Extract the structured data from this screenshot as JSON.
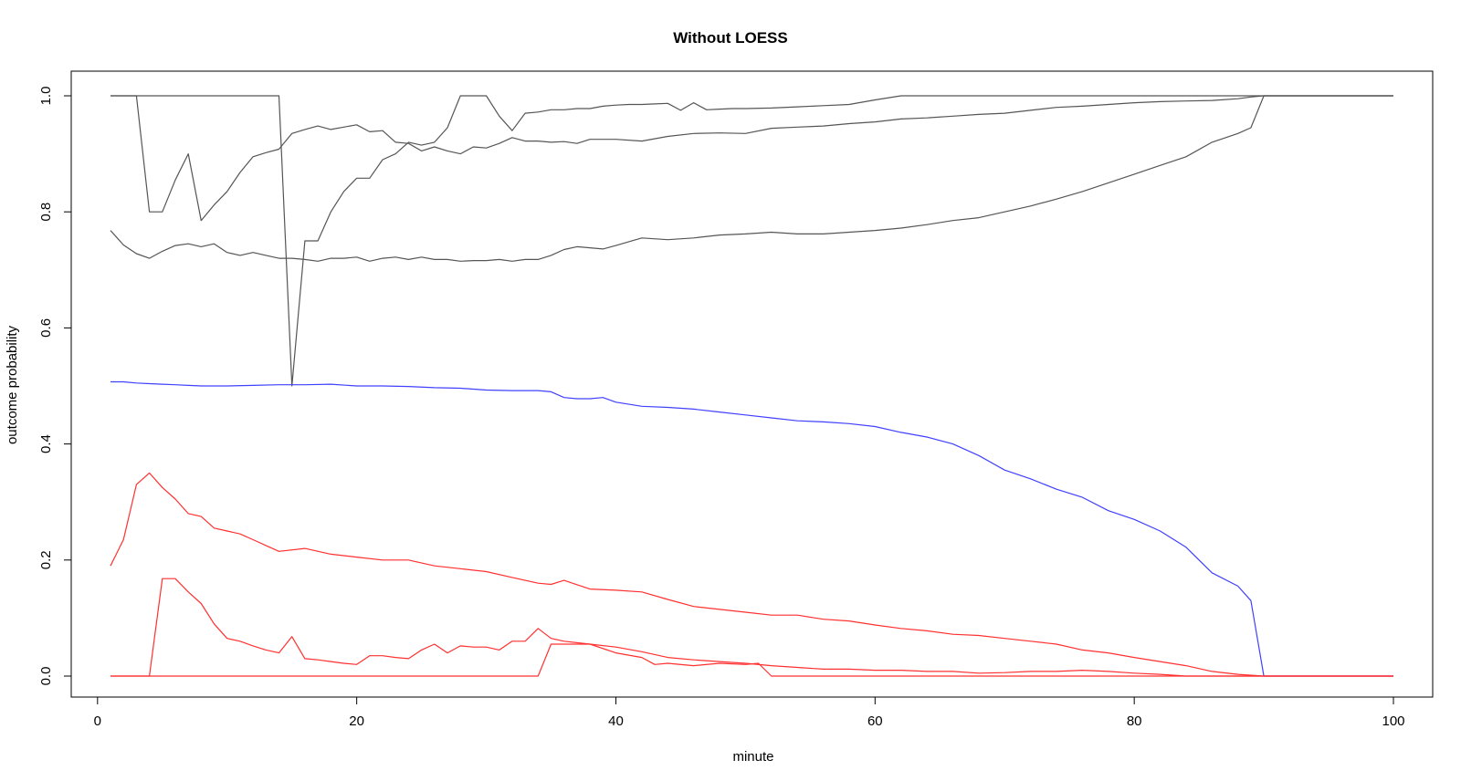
{
  "chart_data": {
    "type": "line",
    "title": "Without LOESS",
    "xlabel": "minute",
    "ylabel": "outcome probability",
    "xlim": [
      1,
      100
    ],
    "ylim": [
      0,
      1
    ],
    "x_ticks": [
      0,
      20,
      40,
      60,
      80,
      100
    ],
    "y_ticks": [
      0.0,
      0.2,
      0.4,
      0.6,
      0.8,
      1.0
    ],
    "x_tick_labels": [
      "0",
      "20",
      "40",
      "60",
      "80",
      "100"
    ],
    "y_tick_labels": [
      "0.0",
      "0.2",
      "0.4",
      "0.6",
      "0.8",
      "1.0"
    ],
    "grid": false,
    "legend": "none",
    "series": [
      {
        "color": "#555555",
        "x": [
          1,
          2,
          3,
          4,
          5,
          6,
          7,
          8,
          9,
          10,
          11,
          12,
          13,
          14,
          15,
          16,
          17,
          18,
          19,
          20,
          21,
          22,
          23,
          24,
          25,
          26,
          27,
          28,
          29,
          30,
          31,
          32,
          33,
          34,
          35,
          36,
          37,
          38,
          39,
          40,
          41,
          42,
          43,
          44,
          45,
          46,
          47,
          48,
          49,
          50,
          52,
          54,
          56,
          58,
          60,
          62,
          64,
          66,
          68,
          70,
          72,
          74,
          76,
          78,
          80,
          82,
          84,
          86,
          88,
          89,
          90,
          100
        ],
        "values": [
          1.0,
          1.0,
          1.0,
          1.0,
          1.0,
          1.0,
          1.0,
          1.0,
          1.0,
          1.0,
          1.0,
          1.0,
          1.0,
          1.0,
          0.5,
          0.75,
          0.75,
          0.8,
          0.835,
          0.858,
          0.858,
          0.89,
          0.9,
          0.92,
          0.915,
          0.92,
          0.945,
          1.0,
          1.0,
          1.0,
          0.965,
          0.94,
          0.97,
          0.972,
          0.976,
          0.976,
          0.978,
          0.978,
          0.982,
          0.984,
          0.985,
          0.985,
          0.986,
          0.987,
          0.975,
          0.988,
          0.976,
          0.977,
          0.978,
          0.978,
          0.979,
          0.981,
          0.983,
          0.985,
          0.993,
          1.0,
          1.0,
          1.0,
          1.0,
          1.0,
          1.0,
          1.0,
          1.0,
          1.0,
          1.0,
          1.0,
          1.0,
          1.0,
          1.0,
          1.0,
          1.0,
          1.0
        ]
      },
      {
        "color": "#555555",
        "x": [
          1,
          2,
          3,
          4,
          5,
          6,
          7,
          8,
          9,
          10,
          11,
          12,
          13,
          14,
          15,
          16,
          17,
          18,
          19,
          20,
          21,
          22,
          23,
          24,
          25,
          26,
          27,
          28,
          29,
          30,
          31,
          32,
          33,
          34,
          35,
          36,
          37,
          38,
          39,
          40,
          42,
          44,
          46,
          48,
          50,
          52,
          54,
          56,
          58,
          60,
          62,
          64,
          66,
          68,
          70,
          72,
          74,
          76,
          78,
          80,
          82,
          84,
          86,
          88,
          89,
          90,
          100
        ],
        "values": [
          1.0,
          1.0,
          1.0,
          0.8,
          0.8,
          0.855,
          0.9,
          0.785,
          0.812,
          0.835,
          0.868,
          0.895,
          0.902,
          0.908,
          0.935,
          0.942,
          0.948,
          0.942,
          0.946,
          0.95,
          0.938,
          0.94,
          0.92,
          0.918,
          0.905,
          0.912,
          0.905,
          0.9,
          0.912,
          0.91,
          0.918,
          0.928,
          0.922,
          0.922,
          0.92,
          0.921,
          0.918,
          0.925,
          0.925,
          0.925,
          0.922,
          0.93,
          0.935,
          0.936,
          0.935,
          0.944,
          0.946,
          0.948,
          0.952,
          0.955,
          0.96,
          0.962,
          0.965,
          0.968,
          0.97,
          0.975,
          0.98,
          0.982,
          0.985,
          0.988,
          0.99,
          0.991,
          0.992,
          0.995,
          0.998,
          1.0,
          1.0
        ]
      },
      {
        "color": "#555555",
        "x": [
          1,
          2,
          3,
          4,
          5,
          6,
          7,
          8,
          9,
          10,
          11,
          12,
          13,
          14,
          15,
          16,
          17,
          18,
          19,
          20,
          21,
          22,
          23,
          24,
          25,
          26,
          27,
          28,
          29,
          30,
          31,
          32,
          33,
          34,
          35,
          36,
          37,
          38,
          39,
          40,
          42,
          44,
          46,
          48,
          50,
          52,
          54,
          56,
          58,
          60,
          62,
          64,
          66,
          68,
          70,
          72,
          74,
          76,
          78,
          80,
          82,
          84,
          86,
          88,
          89,
          90,
          100
        ],
        "values": [
          0.768,
          0.743,
          0.728,
          0.72,
          0.732,
          0.742,
          0.745,
          0.74,
          0.745,
          0.73,
          0.725,
          0.73,
          0.725,
          0.72,
          0.72,
          0.718,
          0.715,
          0.72,
          0.72,
          0.722,
          0.715,
          0.72,
          0.722,
          0.718,
          0.722,
          0.718,
          0.718,
          0.715,
          0.716,
          0.716,
          0.718,
          0.715,
          0.718,
          0.718,
          0.725,
          0.735,
          0.74,
          0.738,
          0.736,
          0.742,
          0.755,
          0.752,
          0.755,
          0.76,
          0.762,
          0.765,
          0.762,
          0.762,
          0.765,
          0.768,
          0.772,
          0.778,
          0.785,
          0.79,
          0.8,
          0.81,
          0.822,
          0.835,
          0.85,
          0.865,
          0.88,
          0.895,
          0.92,
          0.935,
          0.945,
          1.0,
          1.0
        ]
      },
      {
        "color": "#4040ff",
        "x": [
          1,
          2,
          3,
          4,
          5,
          6,
          7,
          8,
          9,
          10,
          12,
          14,
          16,
          18,
          20,
          22,
          24,
          26,
          28,
          30,
          32,
          34,
          35,
          36,
          37,
          38,
          39,
          40,
          42,
          44,
          46,
          48,
          50,
          52,
          54,
          56,
          58,
          60,
          62,
          64,
          66,
          68,
          70,
          72,
          74,
          76,
          78,
          80,
          82,
          84,
          86,
          88,
          89,
          90,
          100
        ],
        "values": [
          0.507,
          0.507,
          0.505,
          0.504,
          0.503,
          0.502,
          0.501,
          0.5,
          0.5,
          0.5,
          0.501,
          0.502,
          0.502,
          0.503,
          0.5,
          0.5,
          0.499,
          0.497,
          0.496,
          0.493,
          0.492,
          0.492,
          0.49,
          0.48,
          0.478,
          0.478,
          0.48,
          0.472,
          0.465,
          0.463,
          0.46,
          0.455,
          0.45,
          0.445,
          0.44,
          0.438,
          0.435,
          0.43,
          0.42,
          0.412,
          0.4,
          0.38,
          0.355,
          0.34,
          0.322,
          0.308,
          0.285,
          0.27,
          0.25,
          0.222,
          0.178,
          0.155,
          0.13,
          0.0,
          0.0
        ]
      },
      {
        "color": "#ff3030",
        "x": [
          1,
          2,
          3,
          4,
          5,
          6,
          7,
          8,
          9,
          10,
          11,
          12,
          13,
          14,
          16,
          18,
          20,
          22,
          24,
          26,
          28,
          30,
          32,
          34,
          35,
          36,
          38,
          40,
          42,
          44,
          46,
          48,
          50,
          52,
          54,
          56,
          58,
          60,
          62,
          64,
          66,
          68,
          70,
          72,
          74,
          76,
          78,
          80,
          82,
          84,
          86,
          88,
          90,
          100
        ],
        "values": [
          0.19,
          0.235,
          0.33,
          0.35,
          0.325,
          0.305,
          0.28,
          0.275,
          0.255,
          0.25,
          0.245,
          0.235,
          0.225,
          0.215,
          0.22,
          0.21,
          0.205,
          0.2,
          0.2,
          0.19,
          0.185,
          0.18,
          0.17,
          0.16,
          0.158,
          0.165,
          0.15,
          0.148,
          0.145,
          0.132,
          0.12,
          0.115,
          0.11,
          0.105,
          0.105,
          0.098,
          0.095,
          0.088,
          0.082,
          0.078,
          0.072,
          0.07,
          0.065,
          0.06,
          0.055,
          0.045,
          0.04,
          0.032,
          0.025,
          0.018,
          0.008,
          0.003,
          0.0,
          0.0
        ]
      },
      {
        "color": "#ff3030",
        "x": [
          1,
          2,
          3,
          4,
          5,
          6,
          7,
          8,
          9,
          10,
          11,
          12,
          13,
          14,
          15,
          16,
          17,
          18,
          19,
          20,
          21,
          22,
          23,
          24,
          25,
          26,
          27,
          28,
          29,
          30,
          31,
          32,
          33,
          34,
          35,
          36,
          38,
          40,
          42,
          44,
          46,
          48,
          50,
          52,
          54,
          56,
          58,
          60,
          62,
          64,
          66,
          68,
          70,
          72,
          74,
          76,
          78,
          80,
          82,
          84,
          90,
          100
        ],
        "values": [
          0.0,
          0.0,
          0.0,
          0.0,
          0.168,
          0.168,
          0.145,
          0.125,
          0.09,
          0.065,
          0.06,
          0.052,
          0.045,
          0.04,
          0.068,
          0.03,
          0.028,
          0.025,
          0.022,
          0.02,
          0.035,
          0.035,
          0.032,
          0.03,
          0.045,
          0.055,
          0.04,
          0.052,
          0.05,
          0.05,
          0.045,
          0.06,
          0.06,
          0.082,
          0.065,
          0.06,
          0.055,
          0.05,
          0.042,
          0.032,
          0.028,
          0.025,
          0.022,
          0.018,
          0.015,
          0.012,
          0.012,
          0.01,
          0.01,
          0.008,
          0.008,
          0.005,
          0.006,
          0.008,
          0.008,
          0.01,
          0.008,
          0.005,
          0.003,
          0.0,
          0.0,
          0.0
        ]
      },
      {
        "color": "#ff3030",
        "x": [
          1,
          2,
          3,
          4,
          33,
          34,
          35,
          36,
          38,
          40,
          42,
          43,
          44,
          46,
          48,
          50,
          51,
          52,
          100
        ],
        "values": [
          0.0,
          0.0,
          0.0,
          0.0,
          0.0,
          0.0,
          0.055,
          0.055,
          0.055,
          0.04,
          0.032,
          0.02,
          0.022,
          0.018,
          0.022,
          0.02,
          0.022,
          0.0,
          0.0
        ]
      }
    ]
  }
}
